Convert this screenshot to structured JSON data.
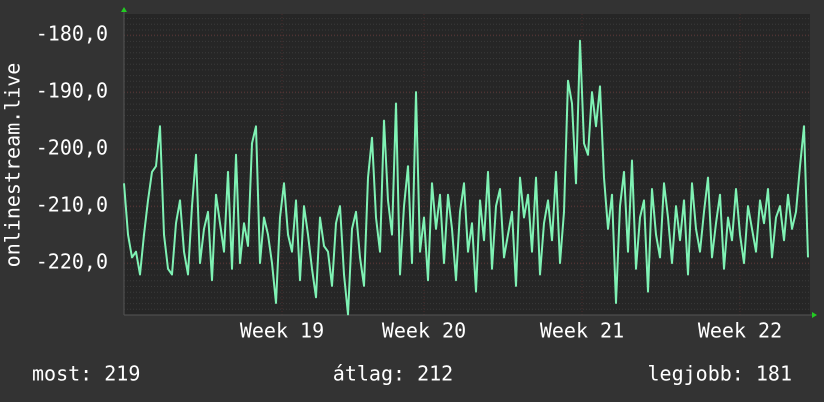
{
  "chart_data": {
    "type": "line",
    "y_label": "onlinestream.live",
    "x": [
      0,
      1,
      2,
      3,
      4,
      5,
      6,
      7,
      8,
      9,
      10,
      11,
      12,
      13,
      14,
      15,
      16,
      17,
      18,
      19,
      20,
      21,
      22,
      23,
      24,
      25,
      26,
      27,
      28,
      29,
      30,
      31,
      32,
      33,
      34,
      35,
      36,
      37,
      38,
      39,
      40,
      41,
      42,
      43,
      44,
      45,
      46,
      47,
      48,
      49,
      50,
      51,
      52,
      53,
      54,
      55,
      56,
      57,
      58,
      59,
      60,
      61,
      62,
      63,
      64,
      65,
      66,
      67,
      68,
      69,
      70,
      71,
      72,
      73,
      74,
      75,
      76,
      77,
      78,
      79,
      80,
      81,
      82,
      83,
      84,
      85,
      86,
      87,
      88,
      89,
      90,
      91,
      92,
      93,
      94,
      95,
      96,
      97,
      98,
      99,
      100,
      101,
      102,
      103,
      104,
      105,
      106,
      107,
      108,
      109,
      110,
      111,
      112,
      113,
      114,
      115,
      116,
      117,
      118,
      119,
      120,
      121,
      122,
      123,
      124,
      125,
      126,
      127,
      128,
      129,
      130,
      131,
      132,
      133,
      134,
      135,
      136,
      137,
      138,
      139,
      140,
      141,
      142,
      143,
      144,
      145,
      146,
      147,
      148,
      149,
      150,
      151,
      152,
      153,
      154,
      155,
      156,
      157,
      158,
      159,
      160,
      161,
      162,
      163,
      164,
      165,
      166,
      167,
      168,
      169,
      170,
      171
    ],
    "series": [
      {
        "color": "#7ff2b4",
        "values": [
          -206,
          -215,
          -219,
          -218,
          -222,
          -215,
          -209,
          -204,
          -203,
          -196,
          -215,
          -221,
          -222,
          -213,
          -209,
          -218,
          -222,
          -210,
          -201,
          -220,
          -214,
          -211,
          -223,
          -208,
          -213,
          -218,
          -204,
          -221,
          -201,
          -220,
          -213,
          -217,
          -199,
          -196,
          -220,
          -212,
          -215,
          -220,
          -227,
          -212,
          -206,
          -215,
          -218,
          -209,
          -223,
          -210,
          -215,
          -221,
          -226,
          -212,
          -217,
          -218,
          -224,
          -213,
          -210,
          -222,
          -229,
          -214,
          -211,
          -219,
          -224,
          -205,
          -198,
          -212,
          -218,
          -195,
          -209,
          -215,
          -192,
          -222,
          -210,
          -203,
          -220,
          -190,
          -218,
          -212,
          -223,
          -206,
          -214,
          -208,
          -220,
          -208,
          -214,
          -223,
          -211,
          -206,
          -218,
          -213,
          -225,
          -209,
          -216,
          -204,
          -221,
          -210,
          -207,
          -219,
          -215,
          -211,
          -224,
          -205,
          -212,
          -208,
          -218,
          -205,
          -222,
          -213,
          -209,
          -216,
          -204,
          -220,
          -211,
          -188,
          -192,
          -206,
          -181,
          -199,
          -201,
          -190,
          -196,
          -189,
          -205,
          -214,
          -208,
          -227,
          -210,
          -204,
          -218,
          -202,
          -221,
          -212,
          -209,
          -225,
          -207,
          -215,
          -219,
          -206,
          -212,
          -220,
          -210,
          -216,
          -209,
          -222,
          -206,
          -214,
          -218,
          -211,
          -205,
          -219,
          -213,
          -208,
          -221,
          -212,
          -216,
          -207,
          -215,
          -220,
          -210,
          -214,
          -218,
          -209,
          -213,
          -207,
          -219,
          -212,
          -210,
          -216,
          -208,
          -214,
          -211,
          -203,
          -196,
          -219
        ]
      }
    ],
    "xlim": [
      0,
      171
    ],
    "xticks": [
      {
        "value": 39.5,
        "label": "Week 19"
      },
      {
        "value": 75,
        "label": "Week 20"
      },
      {
        "value": 114.5,
        "label": "Week 21"
      },
      {
        "value": 154,
        "label": "Week 22"
      }
    ],
    "ylim": [
      -229.1,
      -176.3
    ],
    "yticks": [
      {
        "value": -180,
        "label": "-180,0"
      },
      {
        "value": -190,
        "label": "-190,0"
      },
      {
        "value": -200,
        "label": "-200,0"
      },
      {
        "value": -210,
        "label": "-210,0"
      },
      {
        "value": -220,
        "label": "-220,0"
      }
    ],
    "grid": true,
    "footer": [
      "most: 219",
      "átlag: 212",
      "legjobb: 181"
    ]
  }
}
